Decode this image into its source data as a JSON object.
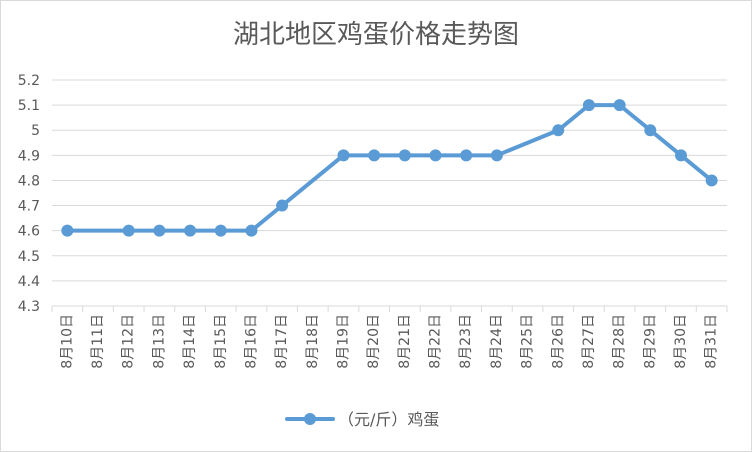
{
  "chart_data": {
    "type": "line",
    "title": "湖北地区鸡蛋价格走势图",
    "xlabel": "",
    "ylabel": "",
    "ylim": [
      4.3,
      5.2
    ],
    "yticks": [
      "4.3",
      "4.4",
      "4.5",
      "4.6",
      "4.7",
      "4.8",
      "4.9",
      "5",
      "5.1",
      "5.2"
    ],
    "grid": true,
    "legend_position": "bottom",
    "categories": [
      "8月10日",
      "8月11日",
      "8月12日",
      "8月13日",
      "8月14日",
      "8月15日",
      "8月16日",
      "8月17日",
      "8月18日",
      "8月19日",
      "8月20日",
      "8月21日",
      "8月22日",
      "8月23日",
      "8月24日",
      "8月25日",
      "8月26日",
      "8月27日",
      "8月28日",
      "8月29日",
      "8月30日",
      "8月31日"
    ],
    "series": [
      {
        "name": "（元/斤）鸡蛋",
        "color": "#5b9bd5",
        "values": [
          4.6,
          null,
          4.6,
          4.6,
          4.6,
          4.6,
          4.6,
          4.7,
          null,
          4.9,
          4.9,
          4.9,
          4.9,
          4.9,
          4.9,
          null,
          5.0,
          5.1,
          5.1,
          5.0,
          4.9,
          4.8
        ]
      }
    ]
  }
}
